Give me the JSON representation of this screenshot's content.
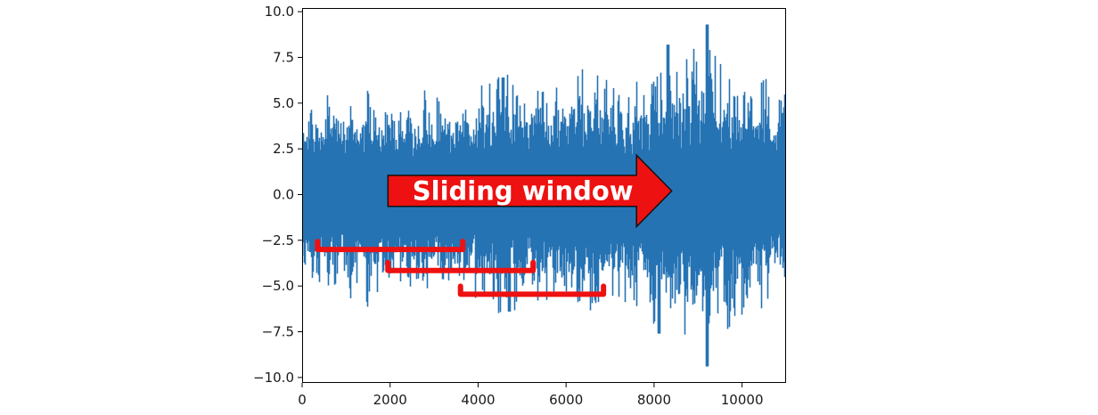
{
  "chart_data": {
    "type": "line",
    "title": "",
    "xlabel": "",
    "ylabel": "",
    "xlim": [
      0,
      11000
    ],
    "ylim": [
      -10.3,
      10.2
    ],
    "x_ticks": [
      0,
      2000,
      4000,
      6000,
      8000,
      10000
    ],
    "x_tick_labels": [
      "0",
      "2000",
      "4000",
      "6000",
      "8000",
      "10000"
    ],
    "y_ticks": [
      10.0,
      7.5,
      5.0,
      2.5,
      0.0,
      -2.5,
      -5.0,
      -7.5,
      -10.0
    ],
    "y_tick_labels": [
      "10.0",
      "7.5",
      "5.0",
      "2.5",
      "0.0",
      "−2.5",
      "−5.0",
      "−7.5",
      "−10.0"
    ],
    "grid": false,
    "series_color": "#2673b4",
    "signal": {
      "sample_count": 11000,
      "envelope_x": [
        0,
        500,
        1000,
        1500,
        2000,
        2500,
        3000,
        3500,
        4000,
        4500,
        5000,
        5500,
        6000,
        6500,
        7000,
        7500,
        8000,
        8500,
        9000,
        9500,
        10000,
        10500,
        11000
      ],
      "envelope_y": [
        3.8,
        4.6,
        4.2,
        4.8,
        4.0,
        4.3,
        4.7,
        4.5,
        5.0,
        6.0,
        5.6,
        4.9,
        5.2,
        6.1,
        5.4,
        5.0,
        6.4,
        6.7,
        7.4,
        6.3,
        5.9,
        5.2,
        4.6
      ],
      "peaks": [
        {
          "x": 9200,
          "y": 9.3
        },
        {
          "x": 9205,
          "y": -9.4
        },
        {
          "x": 8300,
          "y": 8.2
        },
        {
          "x": 8100,
          "y": -7.6
        },
        {
          "x": 4550,
          "y": 6.4
        },
        {
          "x": 4700,
          "y": -6.4
        }
      ]
    },
    "annotations": {
      "arrow_label": "Sliding window",
      "arrow_color": "#ee1111",
      "arrow": {
        "x_start": 1950,
        "x_end": 8400,
        "y_center": 0.2,
        "half_height": 0.85,
        "head_half_height": 1.15,
        "head_length": 800
      },
      "windows": [
        {
          "x_start": 350,
          "x_end": 3650,
          "y": -3.0
        },
        {
          "x_start": 1950,
          "x_end": 5250,
          "y": -4.15
        },
        {
          "x_start": 3600,
          "x_end": 6850,
          "y": -5.45
        }
      ],
      "window_color": "#ee1111"
    }
  }
}
